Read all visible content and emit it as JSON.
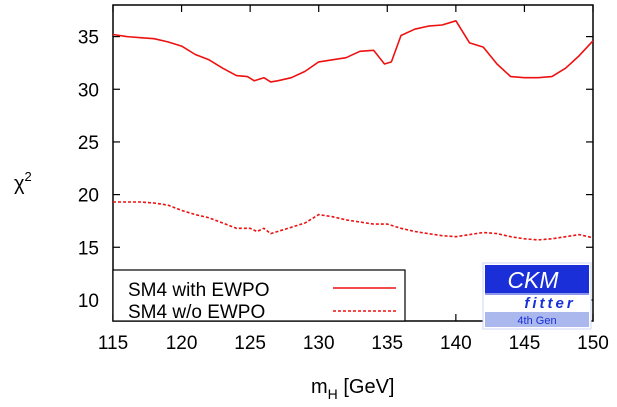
{
  "chart_data": {
    "type": "line",
    "xlabel_main": "m",
    "xlabel_sub": "H",
    "xlabel_unit": " [GeV]",
    "ylabel_main": "χ",
    "ylabel_sup": "2",
    "xlim": [
      115,
      150
    ],
    "ylim": [
      8,
      38
    ],
    "x_ticks": [
      115,
      120,
      125,
      130,
      135,
      140,
      145,
      150
    ],
    "y_ticks": [
      10,
      15,
      20,
      25,
      30,
      35
    ],
    "grid": false,
    "legend_position": "bottom-left",
    "series": [
      {
        "name": "SM4 with EWPO",
        "color": "#ee1111",
        "dash": "solid",
        "points": [
          [
            115,
            35.2
          ],
          [
            116,
            35.0
          ],
          [
            117,
            34.9
          ],
          [
            118,
            34.8
          ],
          [
            119,
            34.5
          ],
          [
            120,
            34.1
          ],
          [
            121,
            33.3
          ],
          [
            122,
            32.8
          ],
          [
            123,
            32.0
          ],
          [
            124,
            31.3
          ],
          [
            124.8,
            31.2
          ],
          [
            125.3,
            30.8
          ],
          [
            126,
            31.1
          ],
          [
            126.5,
            30.7
          ],
          [
            127,
            30.8
          ],
          [
            128,
            31.1
          ],
          [
            129,
            31.7
          ],
          [
            130,
            32.6
          ],
          [
            131,
            32.8
          ],
          [
            132,
            33.0
          ],
          [
            133,
            33.6
          ],
          [
            134,
            33.7
          ],
          [
            134.8,
            32.4
          ],
          [
            135.3,
            32.6
          ],
          [
            136,
            35.1
          ],
          [
            137,
            35.7
          ],
          [
            138,
            36.0
          ],
          [
            139,
            36.1
          ],
          [
            140,
            36.5
          ],
          [
            141,
            34.4
          ],
          [
            142,
            34.0
          ],
          [
            143,
            32.4
          ],
          [
            144,
            31.2
          ],
          [
            145,
            31.1
          ],
          [
            146,
            31.1
          ],
          [
            147,
            31.2
          ],
          [
            148,
            32.0
          ],
          [
            149,
            33.2
          ],
          [
            150,
            34.6
          ]
        ]
      },
      {
        "name": "SM4 w/o EWPO",
        "color": "#ee1111",
        "dash": "dashed",
        "points": [
          [
            115,
            19.3
          ],
          [
            116,
            19.3
          ],
          [
            117,
            19.3
          ],
          [
            118,
            19.2
          ],
          [
            119,
            19.0
          ],
          [
            120,
            18.5
          ],
          [
            121,
            18.1
          ],
          [
            122,
            17.8
          ],
          [
            123,
            17.3
          ],
          [
            124,
            16.8
          ],
          [
            125,
            16.8
          ],
          [
            125.5,
            16.5
          ],
          [
            126,
            16.8
          ],
          [
            126.5,
            16.3
          ],
          [
            127,
            16.5
          ],
          [
            128,
            16.9
          ],
          [
            129,
            17.3
          ],
          [
            130,
            18.1
          ],
          [
            131,
            17.9
          ],
          [
            132,
            17.6
          ],
          [
            133,
            17.4
          ],
          [
            134,
            17.2
          ],
          [
            135,
            17.2
          ],
          [
            136,
            16.8
          ],
          [
            137,
            16.5
          ],
          [
            138,
            16.3
          ],
          [
            139,
            16.1
          ],
          [
            140,
            16.0
          ],
          [
            141,
            16.2
          ],
          [
            142,
            16.4
          ],
          [
            143,
            16.3
          ],
          [
            144,
            16.0
          ],
          [
            145,
            15.8
          ],
          [
            146,
            15.7
          ],
          [
            147,
            15.8
          ],
          [
            148,
            16.0
          ],
          [
            149,
            16.2
          ],
          [
            150,
            15.9
          ]
        ]
      }
    ]
  },
  "logo": {
    "line1": "CKM",
    "line2": "fitter",
    "line3": "4th Gen",
    "color_dark": "#1a2fd8",
    "color_light": "#aab8ee"
  }
}
